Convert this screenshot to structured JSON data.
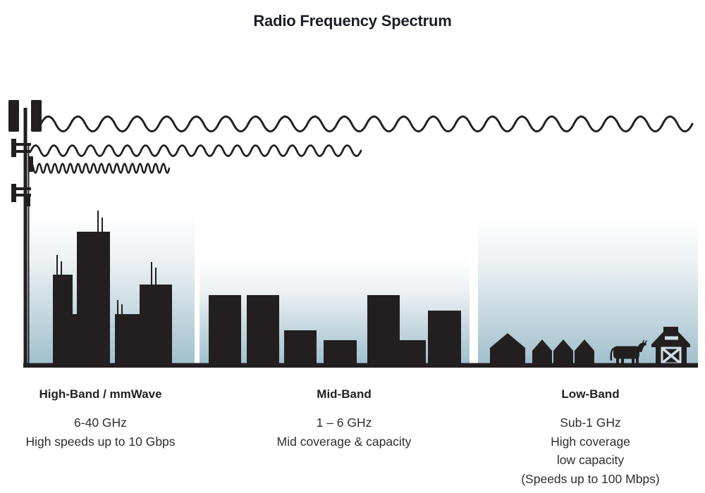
{
  "title": "Radio Frequency Spectrum",
  "colors": {
    "ink": "#231f20",
    "sky_top": "#ffffff",
    "sky_bottom": "#9fc0cd",
    "title_text": "#1b1e28",
    "body_text": "#2e2e33",
    "door": "#cfe0e8"
  },
  "icons": [
    "cell-tower-icon",
    "low-band-wave-icon",
    "mid-band-wave-icon",
    "high-band-wave-icon",
    "city-skyline-icon",
    "town-skyline-icon",
    "house-icon",
    "cow-icon",
    "barn-icon"
  ],
  "bands": [
    {
      "id": "high-band",
      "name": "High-Band / mmWave",
      "details": [
        "6-40 GHz",
        "High speeds up to 10 Gbps"
      ]
    },
    {
      "id": "mid-band",
      "name": "Mid-Band",
      "details": [
        "1 – 6 GHz",
        "Mid coverage & capacity"
      ]
    },
    {
      "id": "low-band",
      "name": "Low-Band",
      "details": [
        "Sub-1 GHz",
        "High coverage",
        "low capacity",
        "(Speeds up to 100 Mbps)"
      ]
    }
  ]
}
